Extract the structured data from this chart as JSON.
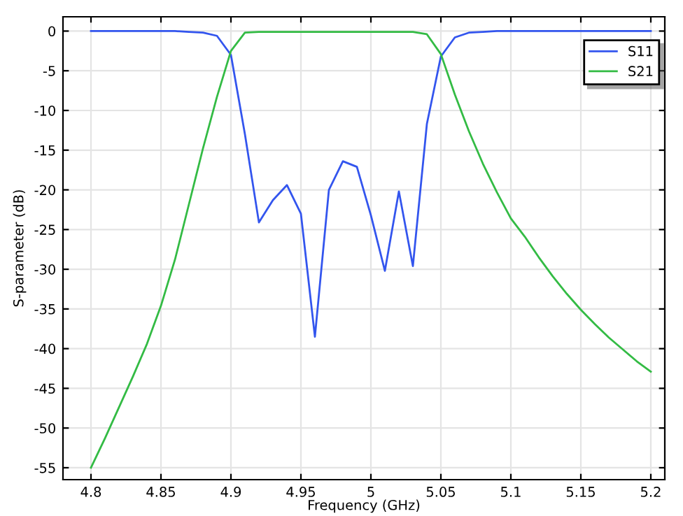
{
  "chart_data": {
    "type": "line",
    "xlabel": "Frequency (GHz)",
    "ylabel": "S-parameter (dB)",
    "x": [
      4.8,
      4.81,
      4.82,
      4.83,
      4.84,
      4.85,
      4.86,
      4.87,
      4.88,
      4.89,
      4.9,
      4.91,
      4.92,
      4.93,
      4.94,
      4.95,
      4.96,
      4.97,
      4.98,
      4.99,
      5.0,
      5.01,
      5.02,
      5.03,
      5.04,
      5.05,
      5.06,
      5.07,
      5.08,
      5.09,
      5.1,
      5.11,
      5.12,
      5.13,
      5.14,
      5.15,
      5.16,
      5.17,
      5.18,
      5.19,
      5.2
    ],
    "series": [
      {
        "name": "S11",
        "color": "#3355ee",
        "values": [
          0,
          0,
          0,
          0,
          0,
          0,
          0,
          -0.1,
          -0.2,
          -0.6,
          -3,
          -13,
          -24.1,
          -21.3,
          -19.4,
          -23,
          -38.5,
          -20,
          -16.4,
          -17.1,
          -23.2,
          -30.2,
          -20.2,
          -29.6,
          -11.7,
          -3.2,
          -0.8,
          -0.2,
          -0.1,
          0,
          0,
          0,
          0,
          0,
          0,
          0,
          0,
          0,
          0,
          0,
          0
        ]
      },
      {
        "name": "S21",
        "color": "#33bb44",
        "values": [
          -55,
          -51.3,
          -47.4,
          -43.5,
          -39.4,
          -34.6,
          -28.8,
          -21.8,
          -14.8,
          -8.3,
          -2.5,
          -0.2,
          -0.1,
          -0.1,
          -0.1,
          -0.1,
          -0.1,
          -0.1,
          -0.1,
          -0.1,
          -0.1,
          -0.1,
          -0.1,
          -0.1,
          -0.4,
          -2.9,
          -8,
          -12.6,
          -16.7,
          -20.3,
          -23.6,
          -25.9,
          -28.5,
          -30.9,
          -33.1,
          -35.1,
          -36.9,
          -38.6,
          -40.1,
          -41.6,
          -42.9
        ]
      }
    ],
    "xlim": [
      4.78,
      5.21
    ],
    "ylim": [
      -56.5,
      1.8
    ],
    "xticks": [
      {
        "value": 4.8,
        "label": "4.8"
      },
      {
        "value": 4.85,
        "label": "4.85"
      },
      {
        "value": 4.9,
        "label": "4.9"
      },
      {
        "value": 4.95,
        "label": "4.95"
      },
      {
        "value": 5.0,
        "label": "5"
      },
      {
        "value": 5.05,
        "label": "5.05"
      },
      {
        "value": 5.1,
        "label": "5.1"
      },
      {
        "value": 5.15,
        "label": "5.15"
      },
      {
        "value": 5.2,
        "label": "5.2"
      }
    ],
    "yticks": [
      0,
      -5,
      -10,
      -15,
      -20,
      -25,
      -30,
      -35,
      -40,
      -45,
      -50,
      -55
    ],
    "grid": true,
    "legend": "top right",
    "marker": "none",
    "line_style": "solid"
  }
}
